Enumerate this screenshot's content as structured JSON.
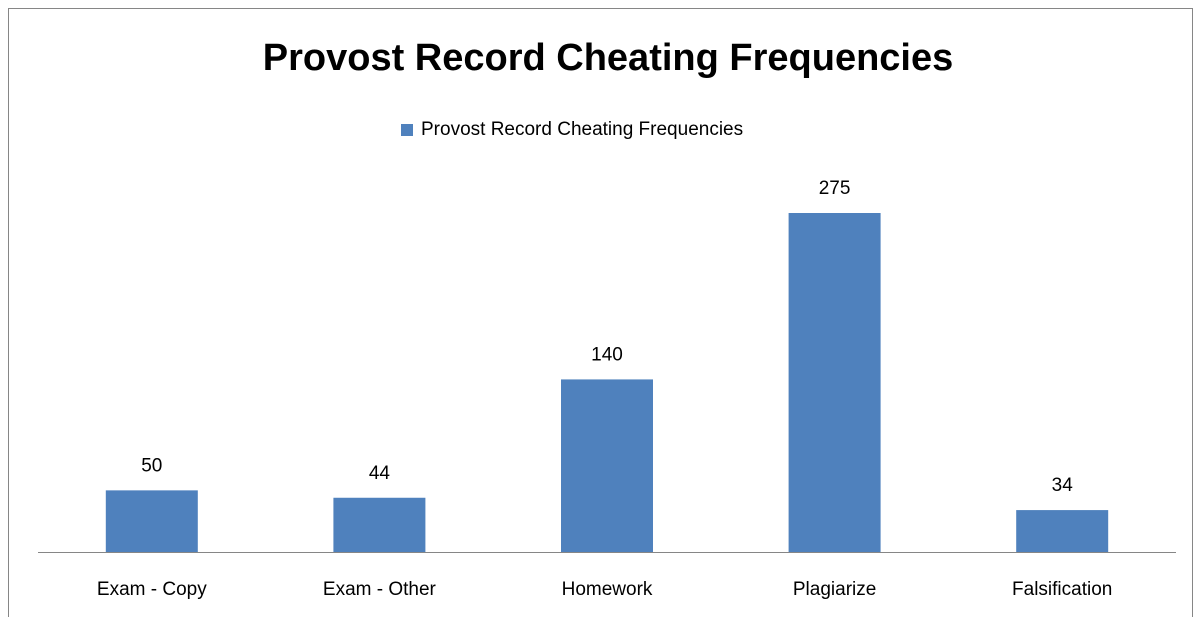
{
  "chart_data": {
    "type": "bar",
    "title": "Provost Record Cheating Frequencies",
    "categories": [
      "Exam - Copy",
      "Exam - Other",
      "Homework",
      "Plagiarize",
      "Falsification"
    ],
    "series": [
      {
        "name": "Provost Record Cheating Frequencies",
        "color": "#4f81bd",
        "values": [
          50,
          44,
          140,
          275,
          34
        ]
      }
    ],
    "legend": "top"
  }
}
